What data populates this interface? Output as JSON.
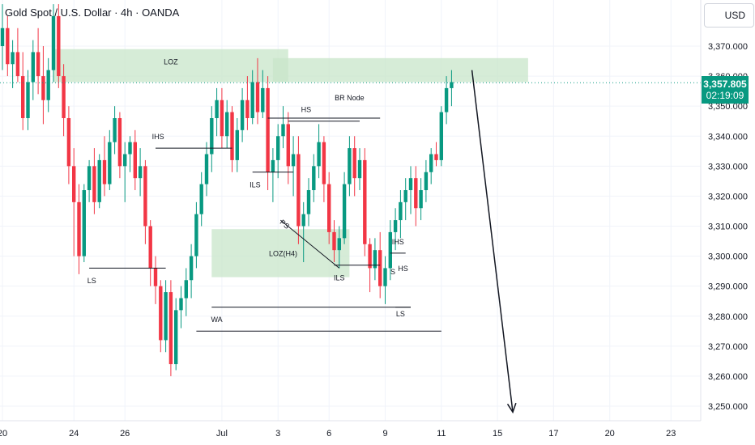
{
  "header": {
    "symbol_title": "Gold Spot / U.S. Dollar · 4h · OANDA",
    "currency": "USD"
  },
  "price_tag": {
    "price": "3,357.805",
    "countdown": "02:19:09"
  },
  "colors": {
    "up": "#089981",
    "down": "#f23645",
    "zone": "#c8e6c9",
    "grid": "#f0f3fa",
    "text": "#131722"
  },
  "chart_data": {
    "type": "candlestick",
    "timeframe": "4h",
    "y_ticks": [
      3250,
      3260,
      3270,
      3280,
      3290,
      3300,
      3310,
      3320,
      3330,
      3340,
      3350,
      3360,
      3370
    ],
    "y_tick_labels": [
      "3,250.000",
      "3,260.000",
      "3,270.000",
      "3,280.000",
      "3,290.000",
      "3,300.000",
      "3,310.000",
      "3,320.000",
      "3,330.000",
      "3,340.000",
      "3,350.000",
      "3,360.000",
      "3,370.000"
    ],
    "ylim": [
      3245,
      3380
    ],
    "x_ticks": [
      {
        "label": "20",
        "bar": 0
      },
      {
        "label": "24",
        "bar": 14
      },
      {
        "label": "26",
        "bar": 24
      },
      {
        "label": "Jul",
        "bar": 43
      },
      {
        "label": "3",
        "bar": 54
      },
      {
        "label": "6",
        "bar": 64
      },
      {
        "label": "9",
        "bar": 75
      },
      {
        "label": "11",
        "bar": 86
      },
      {
        "label": "15",
        "bar": 97
      },
      {
        "label": "17",
        "bar": 108
      },
      {
        "label": "20",
        "bar": 119
      },
      {
        "label": "23",
        "bar": 131
      }
    ],
    "current_price": 3357.805,
    "candles": [
      [
        3370,
        3384,
        3362,
        3376
      ],
      [
        3376,
        3380,
        3360,
        3364
      ],
      [
        3364,
        3372,
        3356,
        3368
      ],
      [
        3368,
        3376,
        3358,
        3360
      ],
      [
        3360,
        3368,
        3342,
        3346
      ],
      [
        3346,
        3362,
        3342,
        3358
      ],
      [
        3358,
        3372,
        3352,
        3368
      ],
      [
        3368,
        3376,
        3354,
        3360
      ],
      [
        3360,
        3370,
        3344,
        3352
      ],
      [
        3352,
        3366,
        3348,
        3362
      ],
      [
        3362,
        3384,
        3358,
        3380
      ],
      [
        3380,
        3384,
        3356,
        3360
      ],
      [
        3360,
        3364,
        3340,
        3346
      ],
      [
        3346,
        3350,
        3324,
        3330
      ],
      [
        3330,
        3336,
        3300,
        3318
      ],
      [
        3318,
        3324,
        3294,
        3300
      ],
      [
        3300,
        3324,
        3298,
        3322
      ],
      [
        3322,
        3332,
        3318,
        3330
      ],
      [
        3330,
        3336,
        3314,
        3318
      ],
      [
        3318,
        3334,
        3316,
        3332
      ],
      [
        3332,
        3340,
        3320,
        3324
      ],
      [
        3324,
        3342,
        3322,
        3338
      ],
      [
        3338,
        3350,
        3334,
        3346
      ],
      [
        3346,
        3348,
        3326,
        3330
      ],
      [
        3330,
        3338,
        3318,
        3334
      ],
      [
        3334,
        3340,
        3328,
        3338
      ],
      [
        3338,
        3342,
        3322,
        3326
      ],
      [
        3326,
        3336,
        3320,
        3330
      ],
      [
        3330,
        3332,
        3304,
        3310
      ],
      [
        3310,
        3312,
        3290,
        3296
      ],
      [
        3296,
        3300,
        3284,
        3290
      ],
      [
        3290,
        3292,
        3268,
        3272
      ],
      [
        3272,
        3292,
        3268,
        3288
      ],
      [
        3288,
        3292,
        3260,
        3264
      ],
      [
        3264,
        3286,
        3262,
        3282
      ],
      [
        3282,
        3290,
        3276,
        3286
      ],
      [
        3286,
        3296,
        3280,
        3292
      ],
      [
        3292,
        3304,
        3286,
        3300
      ],
      [
        3300,
        3318,
        3296,
        3314
      ],
      [
        3314,
        3328,
        3310,
        3324
      ],
      [
        3324,
        3338,
        3320,
        3334
      ],
      [
        3334,
        3350,
        3328,
        3346
      ],
      [
        3346,
        3356,
        3340,
        3352
      ],
      [
        3352,
        3356,
        3336,
        3340
      ],
      [
        3340,
        3352,
        3336,
        3348
      ],
      [
        3348,
        3350,
        3328,
        3332
      ],
      [
        3332,
        3346,
        3328,
        3342
      ],
      [
        3342,
        3356,
        3338,
        3352
      ],
      [
        3352,
        3360,
        3342,
        3346
      ],
      [
        3346,
        3362,
        3344,
        3358
      ],
      [
        3358,
        3366,
        3344,
        3348
      ],
      [
        3348,
        3362,
        3346,
        3356
      ],
      [
        3356,
        3360,
        3322,
        3328
      ],
      [
        3328,
        3336,
        3318,
        3332
      ],
      [
        3332,
        3344,
        3326,
        3340
      ],
      [
        3340,
        3350,
        3336,
        3344
      ],
      [
        3344,
        3348,
        3324,
        3330
      ],
      [
        3330,
        3340,
        3320,
        3334
      ],
      [
        3334,
        3340,
        3304,
        3310
      ],
      [
        3310,
        3318,
        3298,
        3314
      ],
      [
        3314,
        3326,
        3310,
        3322
      ],
      [
        3322,
        3334,
        3318,
        3330
      ],
      [
        3330,
        3344,
        3326,
        3338
      ],
      [
        3338,
        3340,
        3318,
        3324
      ],
      [
        3324,
        3328,
        3304,
        3308
      ],
      [
        3308,
        3312,
        3298,
        3302
      ],
      [
        3302,
        3310,
        3296,
        3306
      ],
      [
        3306,
        3328,
        3304,
        3324
      ],
      [
        3324,
        3340,
        3320,
        3336
      ],
      [
        3336,
        3340,
        3320,
        3326
      ],
      [
        3326,
        3336,
        3322,
        3332
      ],
      [
        3332,
        3336,
        3300,
        3304
      ],
      [
        3304,
        3306,
        3288,
        3296
      ],
      [
        3296,
        3306,
        3292,
        3302
      ],
      [
        3302,
        3308,
        3286,
        3290
      ],
      [
        3290,
        3300,
        3284,
        3296
      ],
      [
        3296,
        3312,
        3292,
        3308
      ],
      [
        3308,
        3316,
        3302,
        3312
      ],
      [
        3312,
        3322,
        3306,
        3318
      ],
      [
        3318,
        3326,
        3312,
        3322
      ],
      [
        3322,
        3330,
        3314,
        3326
      ],
      [
        3326,
        3330,
        3310,
        3316
      ],
      [
        3316,
        3326,
        3312,
        3322
      ],
      [
        3322,
        3332,
        3318,
        3328
      ],
      [
        3328,
        3336,
        3324,
        3334
      ],
      [
        3334,
        3338,
        3330,
        3332
      ],
      [
        3332,
        3350,
        3330,
        3348
      ],
      [
        3348,
        3360,
        3344,
        3356
      ],
      [
        3356,
        3362,
        3350,
        3358
      ]
    ],
    "zones": [
      {
        "label": "LOZ",
        "x0": 10,
        "x1": 56,
        "y0": 3358,
        "y1": 3369
      },
      {
        "label": "",
        "x0": 53,
        "x1": 103,
        "y0": 3358,
        "y1": 3366
      },
      {
        "label": "LOZ(H4)",
        "x0": 41,
        "x1": 68,
        "y0": 3293,
        "y1": 3309
      }
    ],
    "lines": [
      {
        "label": "LS",
        "x0": 17,
        "x1": 32,
        "y": 3296
      },
      {
        "label": "IHS",
        "x0": 30,
        "x1": 45,
        "y": 3336
      },
      {
        "label": "ILS",
        "x0": 49,
        "x1": 57,
        "y": 3328
      },
      {
        "label": "HS",
        "x0": 56,
        "x1": 70,
        "y": 3345
      },
      {
        "label": "BR Node",
        "x0": 52,
        "x1": 74,
        "y": 3346
      },
      {
        "label": "ILS",
        "x0": 65,
        "x1": 74,
        "y": 3297
      },
      {
        "label": "IHS",
        "x0": 76,
        "x1": 79,
        "y": 3301
      },
      {
        "label": "LS",
        "x0": 77,
        "x1": 80,
        "y": 3283
      },
      {
        "label": "WA",
        "x0": 41,
        "x1": 80,
        "y": 3283
      },
      {
        "label": "",
        "x0": 38,
        "x1": 86,
        "y": 3275
      }
    ],
    "annotations": [
      {
        "label": "LOZ",
        "bar": 33,
        "price": 3364
      },
      {
        "label": "IHS",
        "bar": 30.5,
        "price": 3339
      },
      {
        "label": "LS",
        "bar": 17.5,
        "price": 3291
      },
      {
        "label": "ILS",
        "bar": 49.5,
        "price": 3323
      },
      {
        "label": "HS",
        "bar": 59.5,
        "price": 3348
      },
      {
        "label": "BR Node",
        "bar": 68,
        "price": 3352
      },
      {
        "label": "PS",
        "bar": 55,
        "price": 3310
      },
      {
        "label": "LOZ(H4)",
        "bar": 55,
        "price": 3300
      },
      {
        "label": "ILS",
        "bar": 66,
        "price": 3292
      },
      {
        "label": "IHS",
        "bar": 77.5,
        "price": 3304
      },
      {
        "label": "S",
        "bar": 76.5,
        "price": 3294
      },
      {
        "label": "HS",
        "bar": 78.5,
        "price": 3295
      },
      {
        "label": "LS",
        "bar": 78,
        "price": 3280
      },
      {
        "label": "WA",
        "bar": 42,
        "price": 3278
      }
    ],
    "trend_line": {
      "x0": 54.5,
      "y0": 3312,
      "x1": 66,
      "y1": 3296
    },
    "projection_arrow": {
      "x0": 92,
      "y0": 3362,
      "x1": 100,
      "y1": 3248
    }
  }
}
